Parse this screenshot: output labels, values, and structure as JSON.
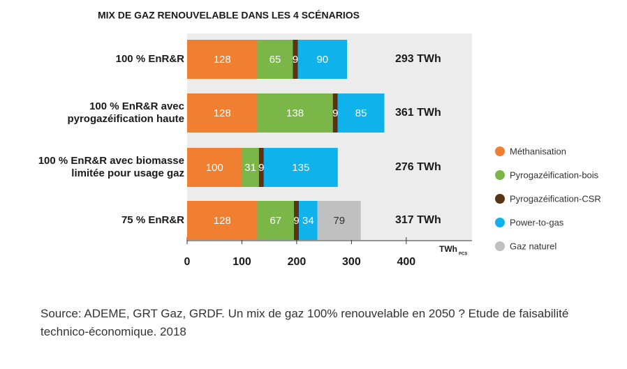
{
  "chart_data": {
    "type": "stacked-barh",
    "title": "MIX DE GAZ RENOUVELABLE DANS LES 4 SCÉNARIOS",
    "categories": [
      "100 % EnR&R",
      "100 % EnR&R avec\npyrogazéification haute",
      "100 % EnR&R avec biomasse\nlimitée pour usage gaz",
      "75 % EnR&R"
    ],
    "series": [
      {
        "name": "Méthanisation",
        "color": "#f07f32",
        "values": [
          128,
          128,
          100,
          128
        ]
      },
      {
        "name": "Pyrogazéification-bois",
        "color": "#7ab648",
        "values": [
          65,
          138,
          31,
          67
        ]
      },
      {
        "name": "Pyrogazéification-CSR",
        "color": "#5a3315",
        "values": [
          9,
          9,
          9,
          9
        ]
      },
      {
        "name": "Power-to-gas",
        "color": "#0fb2ea",
        "values": [
          90,
          85,
          135,
          34
        ]
      },
      {
        "name": "Gaz naturel",
        "color": "#c0c0c0",
        "values": [
          null,
          null,
          null,
          79
        ]
      }
    ],
    "total_labels": [
      "293 TWh",
      "361 TWh",
      "276 TWh",
      "317 TWh"
    ],
    "xlim": [
      0,
      520
    ],
    "xticks": [
      0,
      100,
      200,
      300,
      400
    ],
    "x_label": "TWh",
    "x_label_sub": "PCS",
    "legend": "right",
    "source": "Source: ADEME, GRT Gaz, GRDF. Un mix de gaz 100% renouvelable en 2050 ? Etude de faisabilité technico-économique. 2018"
  }
}
